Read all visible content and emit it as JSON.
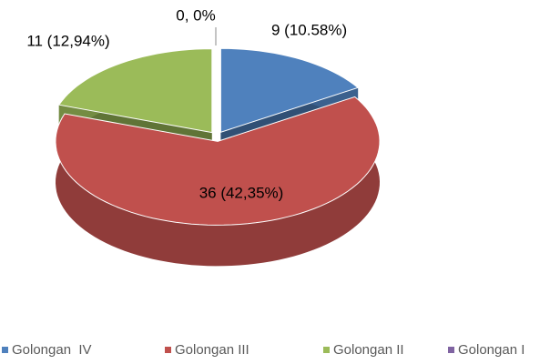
{
  "chart_data": {
    "type": "pie",
    "categories": [
      "Golongan  IV",
      "Golongan III",
      "Golongan II",
      "Golongan I"
    ],
    "values": [
      9,
      36,
      11,
      0
    ],
    "value_labels": [
      "9 (10.58%)",
      "36 (42,35%)",
      "11 (12,94%)",
      "0, 0%"
    ],
    "colors": [
      "#4f81bd",
      "#c0504d",
      "#9bbb59",
      "#8064a2"
    ],
    "legend": "bottom"
  }
}
